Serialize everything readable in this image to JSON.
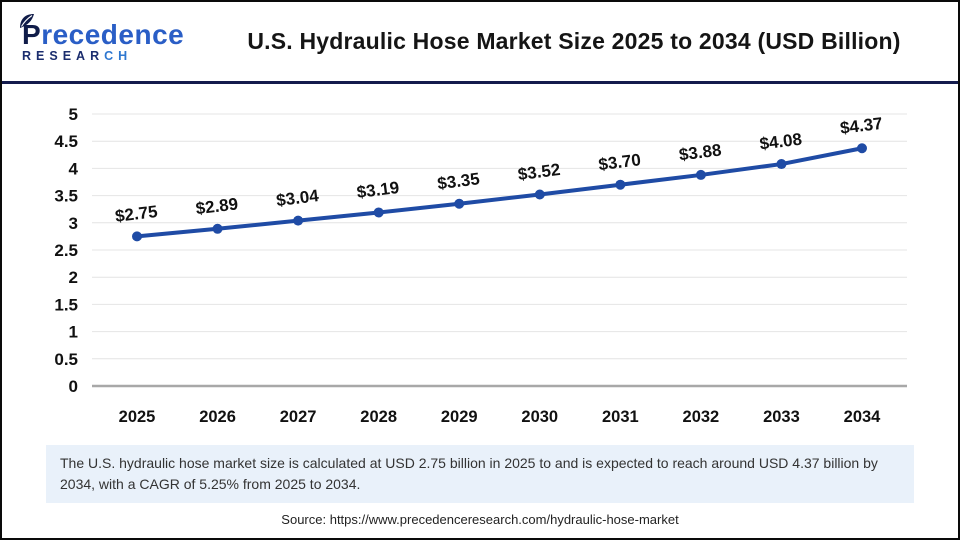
{
  "header": {
    "logo": {
      "p": "P",
      "rest": "recedence",
      "research_dark": "RESEAR",
      "research_light": "CH"
    },
    "title": "U.S. Hydraulic Hose Market Size 2025 to 2034 (USD Billion)"
  },
  "chart_data": {
    "type": "line",
    "title": "U.S. Hydraulic Hose Market Size 2025 to 2034 (USD Billion)",
    "categories": [
      "2025",
      "2026",
      "2027",
      "2028",
      "2029",
      "2030",
      "2031",
      "2032",
      "2033",
      "2034"
    ],
    "series": [
      {
        "name": "U.S. Hydraulic Hose Market Size (USD Billion)",
        "values": [
          2.75,
          2.89,
          3.04,
          3.19,
          3.35,
          3.52,
          3.7,
          3.88,
          4.08,
          4.37
        ],
        "point_labels": [
          "$2.75",
          "$2.89",
          "$3.04",
          "$3.19",
          "$3.35",
          "$3.52",
          "$3.70",
          "$3.88",
          "$4.08",
          "$4.37"
        ]
      }
    ],
    "xlabel": "",
    "ylabel": "",
    "ylim": [
      0,
      5
    ],
    "ytick_step": 0.5,
    "grid": true,
    "legend_position": "none",
    "line_color": "#1f4ba5",
    "marker": "circle"
  },
  "note": {
    "text": "The U.S. hydraulic hose market size is calculated at USD 2.75 billion in 2025 to and is expected to reach around USD 4.37 billion by 2034, with a CAGR of 5.25% from 2025 to 2034."
  },
  "source": {
    "text": "Source: https://www.precedenceresearch.com/hydraulic-hose-market"
  },
  "colors": {
    "divider_navy": "#141b4d",
    "line_blue": "#1f4ba5",
    "grid_line": "#e4e4e4",
    "axis_line": "#a8a8a8",
    "note_bg": "#e9f1fa",
    "logo_navy": "#101c49",
    "logo_blue": "#2a5ec6"
  }
}
